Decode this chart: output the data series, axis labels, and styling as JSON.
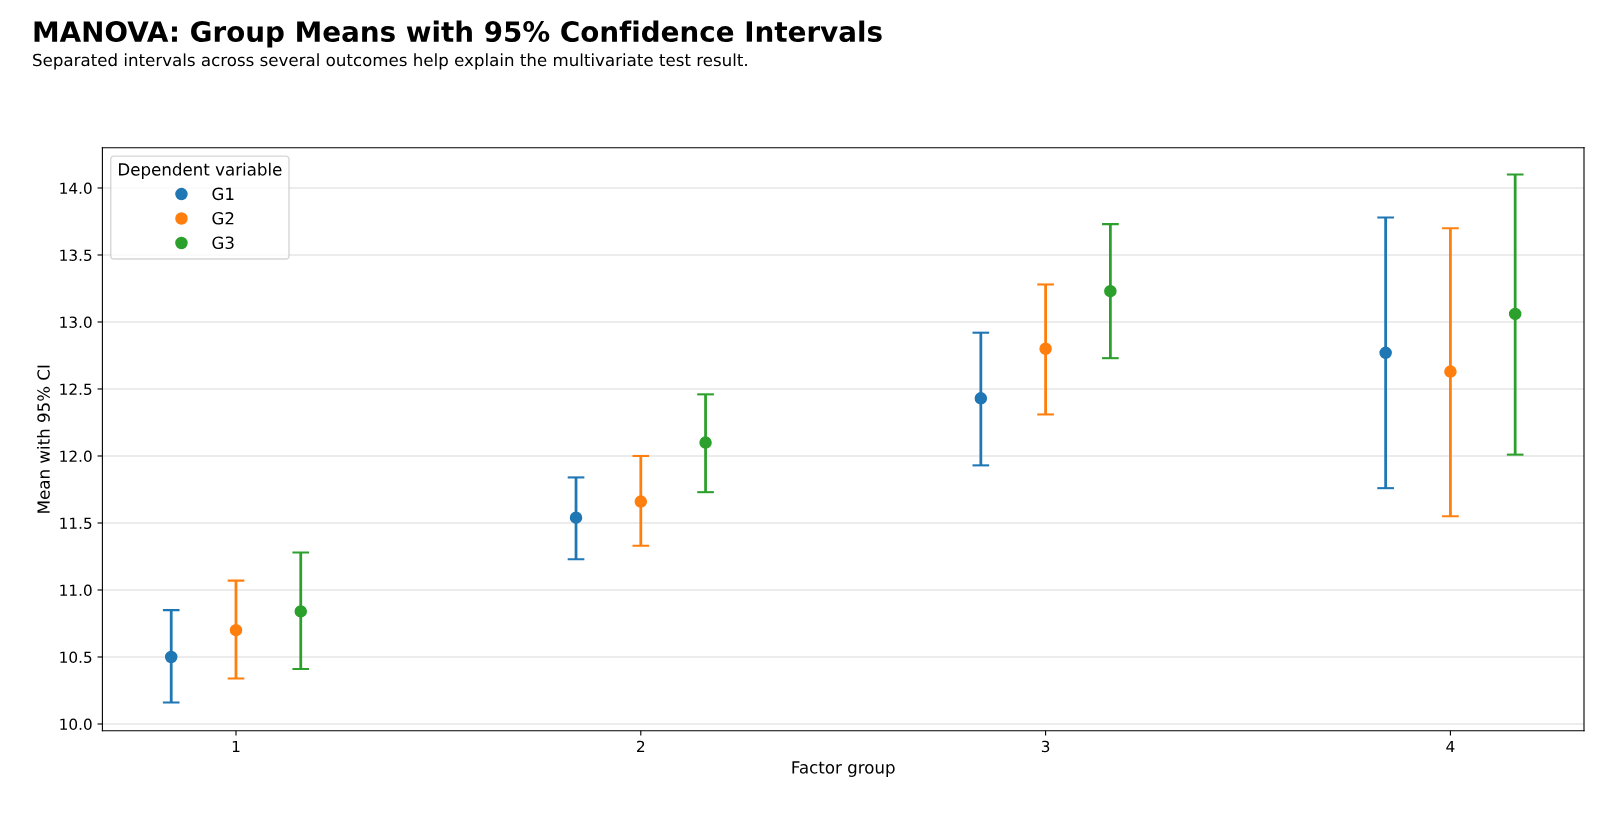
{
  "chart_data": {
    "type": "scatter",
    "title": "MANOVA: Group Means with 95% Confidence Intervals",
    "subtitle": "Separated intervals across several outcomes help explain the multivariate test result.",
    "xlabel": "Factor group",
    "ylabel": "Mean with 95% CI",
    "legend_title": "Dependent variable",
    "categories": [
      "1",
      "2",
      "3",
      "4"
    ],
    "series": [
      {
        "name": "G1",
        "color": "#1f77b4",
        "values": [
          10.5,
          11.54,
          12.43,
          12.77
        ],
        "errors": [
          [
            10.16,
            10.85
          ],
          [
            11.23,
            11.84
          ],
          [
            11.93,
            12.92
          ],
          [
            11.76,
            13.78
          ]
        ]
      },
      {
        "name": "G2",
        "color": "#ff7f0e",
        "values": [
          10.7,
          11.66,
          12.8,
          12.63
        ],
        "errors": [
          [
            10.34,
            11.07
          ],
          [
            11.33,
            12.0
          ],
          [
            12.31,
            13.28
          ],
          [
            11.55,
            13.7
          ]
        ]
      },
      {
        "name": "G3",
        "color": "#2ca02c",
        "values": [
          10.84,
          12.1,
          13.23,
          13.06
        ],
        "errors": [
          [
            10.41,
            11.28
          ],
          [
            11.73,
            12.46
          ],
          [
            12.73,
            13.73
          ],
          [
            12.01,
            14.1
          ]
        ]
      }
    ],
    "ylim": [
      9.95,
      14.3
    ],
    "yticks": [
      {
        "value": 10,
        "label": "10.0"
      },
      {
        "value": 10.5,
        "label": "10.5"
      },
      {
        "value": 11,
        "label": "11.0"
      },
      {
        "value": 11.5,
        "label": "11.5"
      },
      {
        "value": 12,
        "label": "12.0"
      },
      {
        "value": 12.5,
        "label": "12.5"
      },
      {
        "value": 13,
        "label": "13.0"
      },
      {
        "value": 13.5,
        "label": "13.5"
      },
      {
        "value": 14,
        "label": "14.0"
      }
    ],
    "grid": "y",
    "legend": "top left",
    "marker": "circle"
  }
}
